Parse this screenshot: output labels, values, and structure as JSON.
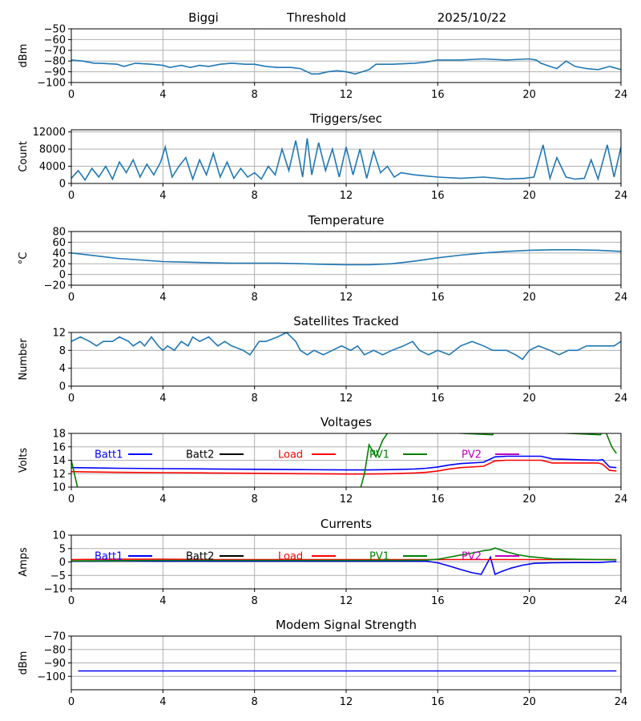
{
  "header": {
    "station": "Biggi",
    "parameter": "Threshold",
    "date": "2025/10/22"
  },
  "colors": {
    "default_series": "#1f77b4",
    "batt1": "#0000ff",
    "batt2": "#000000",
    "load": "#ff0000",
    "pv1": "#008000",
    "pv2": "#bf00bf",
    "grid": "#b0b0b0"
  },
  "chart_data": [
    {
      "id": "threshold",
      "type": "line",
      "title": "",
      "ylabel": "dBm",
      "xlim": [
        0,
        24
      ],
      "ylim": [
        -100,
        -50
      ],
      "yticks": [
        -100,
        -90,
        -80,
        -70,
        -60,
        -50
      ],
      "xticks": [
        0,
        4,
        8,
        12,
        16,
        20,
        24
      ],
      "grid": true,
      "series": [
        {
          "name": "Threshold",
          "color": "#1f77b4",
          "x": [
            0,
            0.5,
            1.0,
            1.2,
            2.0,
            2.3,
            2.8,
            3.5,
            4.0,
            4.3,
            4.8,
            5.2,
            5.6,
            6.0,
            6.5,
            7.0,
            7.6,
            8.0,
            8.5,
            9.0,
            9.6,
            10.0,
            10.5,
            10.8,
            11.2,
            11.6,
            12.0,
            12.4,
            12.7,
            13.0,
            13.3,
            14.0,
            15.0,
            15.5,
            16.0,
            17.0,
            18.0,
            19.0,
            20.0,
            20.3,
            20.5,
            20.9,
            21.2,
            21.6,
            22.0,
            22.5,
            23.0,
            23.5,
            24.0
          ],
          "y": [
            -79,
            -80,
            -82,
            -82,
            -83,
            -85,
            -82,
            -83,
            -84,
            -86,
            -84,
            -86,
            -84,
            -85,
            -83,
            -82,
            -83,
            -83,
            -85,
            -86,
            -86,
            -87,
            -92,
            -92,
            -90,
            -89,
            -90,
            -92,
            -90,
            -88,
            -83,
            -83,
            -82,
            -81,
            -79,
            -79,
            -78,
            -79,
            -78,
            -79,
            -82,
            -85,
            -87,
            -80,
            -85,
            -87,
            -88,
            -85,
            -88
          ]
        }
      ]
    },
    {
      "id": "triggers",
      "type": "line",
      "title": "Triggers/sec",
      "ylabel": "Count",
      "xlim": [
        0,
        24
      ],
      "ylim": [
        0,
        12500
      ],
      "yticks": [
        0,
        4000,
        8000,
        12000
      ],
      "xticks": [
        0,
        4,
        8,
        12,
        16,
        20,
        24
      ],
      "grid": true,
      "series": [
        {
          "name": "Triggers",
          "color": "#1f77b4",
          "x": [
            0,
            0.3,
            0.6,
            0.9,
            1.2,
            1.5,
            1.8,
            2.1,
            2.4,
            2.7,
            3.0,
            3.3,
            3.6,
            3.9,
            4.1,
            4.4,
            4.7,
            5.0,
            5.3,
            5.6,
            5.9,
            6.2,
            6.5,
            6.8,
            7.1,
            7.4,
            7.7,
            8.0,
            8.3,
            8.6,
            8.9,
            9.2,
            9.5,
            9.8,
            10.1,
            10.3,
            10.5,
            10.8,
            11.1,
            11.4,
            11.7,
            12.0,
            12.3,
            12.6,
            12.9,
            13.2,
            13.5,
            13.8,
            14.1,
            14.4,
            15.0,
            16.0,
            17.0,
            18.0,
            19.0,
            19.8,
            20.2,
            20.6,
            20.9,
            21.2,
            21.6,
            22.0,
            22.4,
            22.7,
            23.0,
            23.4,
            23.7,
            24.0
          ],
          "y": [
            1200,
            3000,
            800,
            3500,
            1500,
            4000,
            1000,
            5000,
            2500,
            5500,
            1500,
            4500,
            2000,
            5000,
            8500,
            1500,
            4000,
            6000,
            1000,
            5500,
            2000,
            7000,
            1500,
            5000,
            1200,
            3500,
            1500,
            2500,
            1000,
            4000,
            2000,
            8000,
            3000,
            10000,
            1500,
            10500,
            2000,
            9500,
            3000,
            8000,
            1500,
            8500,
            2000,
            8000,
            1200,
            7500,
            2500,
            4000,
            1500,
            2500,
            2000,
            1500,
            1200,
            1500,
            1000,
            1200,
            1500,
            9000,
            1200,
            6000,
            1500,
            1000,
            1200,
            5500,
            1000,
            9000,
            1500,
            8500
          ]
        }
      ]
    },
    {
      "id": "temperature",
      "type": "line",
      "title": "Temperature",
      "ylabel": "°C",
      "xlim": [
        0,
        24
      ],
      "ylim": [
        -20,
        80
      ],
      "yticks": [
        -20,
        0,
        20,
        40,
        60,
        80
      ],
      "xticks": [
        0,
        4,
        8,
        12,
        16,
        20,
        24
      ],
      "grid": true,
      "series": [
        {
          "name": "Temperature",
          "color": "#1f77b4",
          "x": [
            0,
            1,
            2,
            3,
            4,
            5,
            6,
            7,
            8,
            9,
            10,
            11,
            12,
            13,
            14,
            15,
            16,
            17,
            18,
            19,
            20,
            21,
            22,
            23,
            24
          ],
          "y": [
            40,
            35,
            30,
            27,
            24,
            23,
            22,
            21,
            21,
            21,
            20,
            19,
            18,
            18,
            20,
            25,
            31,
            36,
            40,
            43,
            45,
            46,
            46,
            45,
            43
          ]
        }
      ]
    },
    {
      "id": "satellites",
      "type": "line",
      "title": "Satellites Tracked",
      "ylabel": "Number",
      "xlim": [
        0,
        24
      ],
      "ylim": [
        0,
        12
      ],
      "yticks": [
        0,
        4,
        8,
        12
      ],
      "xticks": [
        0,
        4,
        8,
        12,
        16,
        20,
        24
      ],
      "grid": true,
      "series": [
        {
          "name": "Satellites",
          "color": "#1f77b4",
          "x": [
            0,
            0.4,
            0.8,
            1.1,
            1.4,
            1.8,
            2.1,
            2.5,
            2.7,
            3.0,
            3.2,
            3.5,
            3.8,
            4.0,
            4.2,
            4.5,
            4.8,
            5.1,
            5.3,
            5.6,
            6.0,
            6.4,
            6.7,
            7.0,
            7.5,
            7.8,
            8.2,
            8.5,
            9.0,
            9.4,
            9.8,
            10.0,
            10.3,
            10.6,
            11.0,
            11.4,
            11.8,
            12.2,
            12.5,
            12.8,
            13.2,
            13.6,
            14.0,
            14.5,
            14.9,
            15.2,
            15.6,
            16.0,
            16.5,
            17.0,
            17.5,
            18.0,
            18.4,
            19.0,
            19.4,
            19.7,
            20.0,
            20.4,
            20.9,
            21.3,
            21.7,
            22.1,
            22.5,
            23.0,
            23.4,
            23.7,
            24.0
          ],
          "y": [
            10,
            11,
            10,
            9,
            10,
            10,
            11,
            10,
            9,
            10,
            9,
            11,
            9,
            8,
            9,
            8,
            10,
            9,
            11,
            10,
            11,
            9,
            10,
            9,
            8,
            7,
            10,
            10,
            11,
            12,
            10,
            8,
            7,
            8,
            7,
            8,
            9,
            8,
            9,
            7,
            8,
            7,
            8,
            9,
            10,
            8,
            7,
            8,
            7,
            9,
            10,
            9,
            8,
            8,
            7,
            6,
            8,
            9,
            8,
            7,
            8,
            8,
            9,
            9,
            9,
            9,
            10
          ]
        }
      ]
    },
    {
      "id": "voltages",
      "type": "line",
      "title": "Voltages",
      "ylabel": "Volts",
      "xlim": [
        0,
        24
      ],
      "ylim": [
        10,
        18
      ],
      "yticks": [
        10,
        12,
        14,
        16,
        18
      ],
      "xticks": [
        0,
        4,
        8,
        12,
        16,
        20,
        24
      ],
      "grid": true,
      "series": [
        {
          "name": "Batt1",
          "color": "#0000ff",
          "x": [
            0,
            1,
            2,
            4,
            6,
            8,
            10,
            12,
            13,
            14,
            15,
            15.5,
            16,
            16.5,
            17,
            18,
            18.5,
            19,
            20,
            20.5,
            21,
            22,
            23,
            23.2,
            23.5,
            23.8
          ],
          "y": [
            12.9,
            12.85,
            12.8,
            12.75,
            12.7,
            12.65,
            12.6,
            12.55,
            12.55,
            12.6,
            12.7,
            12.8,
            13.0,
            13.3,
            13.5,
            13.7,
            14.5,
            14.6,
            14.6,
            14.6,
            14.2,
            14.1,
            14.0,
            14.1,
            13.0,
            12.9
          ]
        },
        {
          "name": "Batt2",
          "color": "#000000",
          "x": [],
          "y": []
        },
        {
          "name": "Load",
          "color": "#ff0000",
          "x": [
            0,
            1,
            2,
            4,
            6,
            8,
            10,
            12,
            13,
            14,
            15,
            15.5,
            16,
            16.5,
            17,
            18,
            18.5,
            19,
            20,
            20.5,
            21,
            22,
            23,
            23.2,
            23.5,
            23.8
          ],
          "y": [
            12.3,
            12.25,
            12.2,
            12.15,
            12.1,
            12.05,
            12.0,
            11.95,
            11.95,
            12.0,
            12.1,
            12.2,
            12.4,
            12.7,
            12.9,
            13.1,
            13.9,
            14.0,
            14.0,
            14.0,
            13.6,
            13.6,
            13.6,
            13.4,
            12.5,
            12.4
          ]
        },
        {
          "name": "PV1",
          "color": "#008000",
          "x": [
            0,
            0.3,
            12.6,
            12.8,
            13.0,
            13.3,
            13.6,
            13.9,
            18.4,
            18.5,
            23.1,
            23.3,
            23.6,
            23.8
          ],
          "y": [
            14.0,
            9.5,
            9.5,
            12.0,
            16.3,
            14.5,
            17.0,
            18.5,
            17.8,
            18.5,
            17.8,
            18.5,
            16.0,
            15.0
          ]
        },
        {
          "name": "PV2",
          "color": "#bf00bf",
          "x": [],
          "y": []
        }
      ]
    },
    {
      "id": "currents",
      "type": "line",
      "title": "Currents",
      "ylabel": "Amps",
      "xlim": [
        0,
        24
      ],
      "ylim": [
        -10,
        10
      ],
      "yticks": [
        -10,
        -5,
        0,
        5,
        10
      ],
      "xticks": [
        0,
        4,
        8,
        12,
        16,
        20,
        24
      ],
      "grid": true,
      "series": [
        {
          "name": "Batt1",
          "color": "#0000ff",
          "x": [
            0,
            2,
            4,
            6,
            8,
            10,
            12,
            14,
            15.5,
            16,
            16.5,
            17,
            17.5,
            17.9,
            18.3,
            18.5,
            18.8,
            19.2,
            19.7,
            20.2,
            21,
            22,
            23,
            23.8
          ],
          "y": [
            0.3,
            0.4,
            0.3,
            0.3,
            0.3,
            0.3,
            0.3,
            0.3,
            0.3,
            -0.3,
            -1.5,
            -2.8,
            -4.0,
            -4.6,
            1.8,
            -4.6,
            -3.5,
            -2.3,
            -1.2,
            -0.5,
            -0.3,
            -0.2,
            -0.2,
            0.2
          ]
        },
        {
          "name": "Batt2",
          "color": "#000000",
          "x": [],
          "y": []
        },
        {
          "name": "Load",
          "color": "#ff0000",
          "x": [
            0,
            2,
            4,
            6,
            8,
            10,
            12,
            14,
            16,
            18,
            20,
            22,
            23.8
          ],
          "y": [
            0.9,
            1.0,
            1.0,
            0.9,
            0.9,
            0.9,
            0.9,
            0.9,
            0.9,
            0.9,
            0.9,
            0.9,
            0.9
          ]
        },
        {
          "name": "PV1",
          "color": "#008000",
          "x": [
            0,
            2,
            4,
            6,
            8,
            10,
            12,
            14,
            15.5,
            16,
            16.5,
            17,
            17.5,
            18,
            18.3,
            18.5,
            19,
            19.5,
            20,
            21,
            22,
            23,
            23.8
          ],
          "y": [
            0.4,
            0.5,
            0.6,
            0.6,
            0.6,
            0.6,
            0.6,
            0.6,
            0.7,
            1.0,
            1.8,
            2.6,
            3.3,
            4.2,
            4.5,
            5.2,
            3.8,
            2.7,
            2.0,
            1.2,
            1.0,
            0.9,
            0.8
          ]
        },
        {
          "name": "PV2",
          "color": "#bf00bf",
          "x": [],
          "y": []
        }
      ]
    },
    {
      "id": "modem",
      "type": "line",
      "title": "Modem Signal Strength",
      "ylabel": "dBm",
      "xlim": [
        0,
        24
      ],
      "ylim": [
        -110,
        -70
      ],
      "yticks": [
        -100,
        -90,
        -80,
        -70
      ],
      "xticks": [
        0,
        4,
        8,
        12,
        16,
        20,
        24
      ],
      "grid": true,
      "series": [
        {
          "name": "Modem",
          "color": "#0000ff",
          "x": [
            0.3,
            4,
            8,
            12,
            16,
            20,
            23.8
          ],
          "y": [
            -96,
            -96,
            -96,
            -96,
            -96,
            -96,
            -96
          ]
        }
      ]
    }
  ]
}
